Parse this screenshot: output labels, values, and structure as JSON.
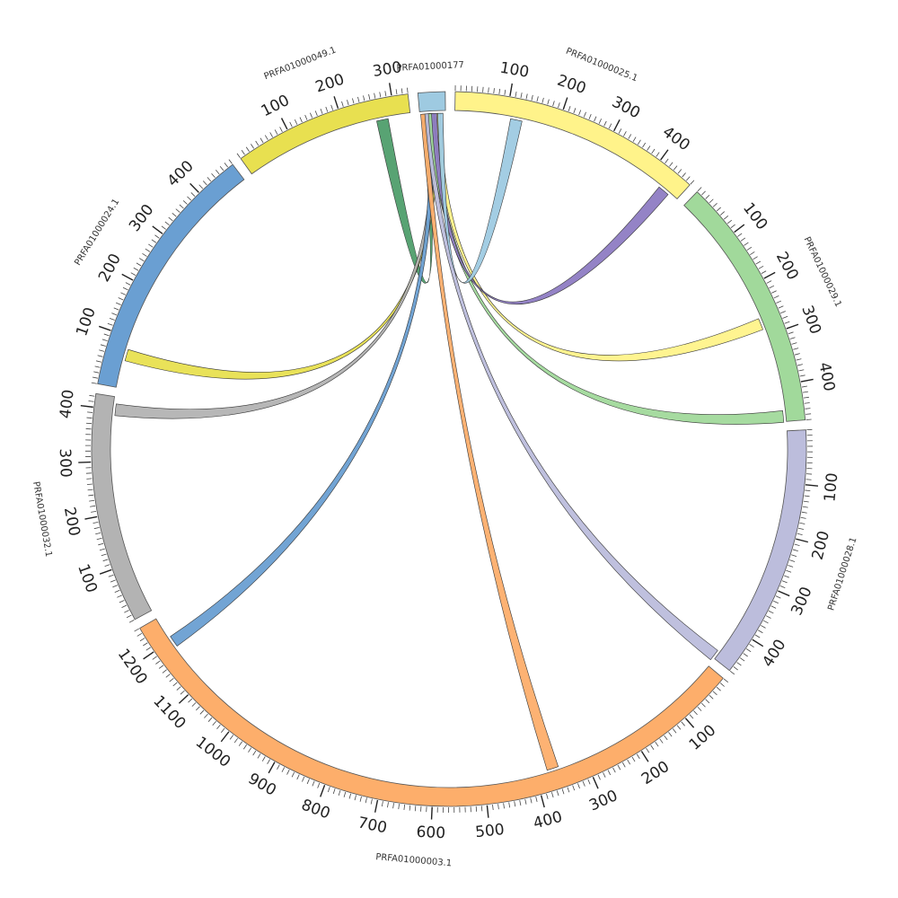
{
  "diagram": {
    "segments": [
      {
        "name": "PRFA01000177",
        "length": 50,
        "color": "#9ecae1"
      },
      {
        "name": "PRFA01000025.1",
        "length": 470,
        "color": "#fff38a"
      },
      {
        "name": "PRFA01000029.1",
        "length": 470,
        "color": "#a1d99b"
      },
      {
        "name": "PRFA01000028.1",
        "length": 470,
        "color": "#bcbddc"
      },
      {
        "name": "PRFA01000003.1",
        "length": 1250,
        "color": "#fdae6b"
      },
      {
        "name": "PRFA01000032.1",
        "length": 425,
        "color": "#b3b3b3"
      },
      {
        "name": "PRFA01000024.1",
        "length": 480,
        "color": "#6a9fd2"
      },
      {
        "name": "PRFA01000049.1",
        "length": 330,
        "color": "#e8e050"
      }
    ],
    "links": [
      {
        "color": "#4f9e6b",
        "from_segment": "PRFA01000177",
        "from_pos": 10,
        "to_segment": "PRFA01000049.1",
        "to_pos": 275
      },
      {
        "color": "#e8e050",
        "from_segment": "PRFA01000177",
        "from_pos": 30,
        "to_segment": "PRFA01000024.1",
        "to_pos": 65
      },
      {
        "color": "#b3b3b3",
        "from_segment": "PRFA01000177",
        "from_pos": 25,
        "to_segment": "PRFA01000032.1",
        "to_pos": 400
      },
      {
        "color": "#6a9fd2",
        "from_segment": "PRFA01000177",
        "from_pos": 20,
        "to_segment": "PRFA01000003.1",
        "to_pos": 1195
      },
      {
        "color": "#fdae6b",
        "from_segment": "PRFA01000177",
        "from_pos": 7,
        "to_segment": "PRFA01000003.1",
        "to_pos": 365
      },
      {
        "color": "#bcbddc",
        "from_segment": "PRFA01000177",
        "from_pos": 15,
        "to_segment": "PRFA01000028.1",
        "to_pos": 465
      },
      {
        "color": "#a1d99b",
        "from_segment": "PRFA01000177",
        "from_pos": 22,
        "to_segment": "PRFA01000029.1",
        "to_pos": 460
      },
      {
        "color": "#fff38a",
        "from_segment": "PRFA01000177",
        "from_pos": 35,
        "to_segment": "PRFA01000029.1",
        "to_pos": 275
      },
      {
        "color": "#8e7cc3",
        "from_segment": "PRFA01000177",
        "from_pos": 28,
        "to_segment": "PRFA01000025.1",
        "to_pos": 440
      },
      {
        "color": "#9ecae1",
        "from_segment": "PRFA01000177",
        "from_pos": 40,
        "to_segment": "PRFA01000025.1",
        "to_pos": 120
      }
    ]
  }
}
